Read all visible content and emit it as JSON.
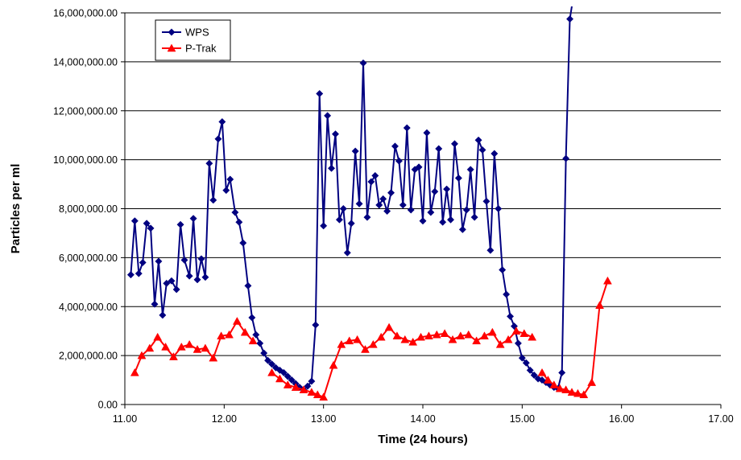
{
  "chart_data": {
    "type": "line",
    "xlabel": "Time (24 hours)",
    "ylabel": "Particles per ml",
    "xlim": [
      11.0,
      17.0
    ],
    "ylim": [
      0,
      16000000
    ],
    "x_ticks": [
      "11.00",
      "12.00",
      "13.00",
      "14.00",
      "15.00",
      "16.00",
      "17.00"
    ],
    "y_ticks": [
      "0.00",
      "2,000,000.00",
      "4,000,000.00",
      "6,000,000.00",
      "8,000,000.00",
      "10,000,000.00",
      "12,000,000.00",
      "14,000,000.00",
      "16,000,000.00"
    ],
    "grid": "horizontal",
    "legend_position": "top-left",
    "series": [
      {
        "name": "WPS",
        "color": "#000080",
        "marker": "diamond",
        "segments": [
          [
            [
              11.06,
              5300000
            ],
            [
              11.1,
              7500000
            ],
            [
              11.14,
              5350000
            ],
            [
              11.18,
              5800000
            ],
            [
              11.22,
              7400000
            ],
            [
              11.26,
              7200000
            ],
            [
              11.3,
              4100000
            ],
            [
              11.34,
              5850000
            ],
            [
              11.38,
              3650000
            ],
            [
              11.42,
              4950000
            ],
            [
              11.47,
              5050000
            ],
            [
              11.52,
              4700000
            ],
            [
              11.56,
              7350000
            ],
            [
              11.6,
              5900000
            ],
            [
              11.65,
              5250000
            ],
            [
              11.69,
              7600000
            ],
            [
              11.73,
              5100000
            ],
            [
              11.77,
              5950000
            ],
            [
              11.81,
              5200000
            ],
            [
              11.85,
              9850000
            ],
            [
              11.89,
              8350000
            ],
            [
              11.94,
              10850000
            ],
            [
              11.98,
              11550000
            ],
            [
              12.02,
              8750000
            ],
            [
              12.06,
              9200000
            ],
            [
              12.11,
              7850000
            ],
            [
              12.15,
              7450000
            ],
            [
              12.19,
              6600000
            ],
            [
              12.24,
              4850000
            ],
            [
              12.28,
              3550000
            ],
            [
              12.32,
              2850000
            ],
            [
              12.36,
              2500000
            ],
            [
              12.4,
              2100000
            ],
            [
              12.44,
              1800000
            ],
            [
              12.48,
              1650000
            ],
            [
              12.52,
              1500000
            ],
            [
              12.56,
              1400000
            ],
            [
              12.6,
              1300000
            ],
            [
              12.64,
              1150000
            ],
            [
              12.68,
              1000000
            ],
            [
              12.72,
              850000
            ],
            [
              12.76,
              700000
            ],
            [
              12.8,
              600000
            ],
            [
              12.84,
              750000
            ],
            [
              12.88,
              950000
            ],
            [
              12.92,
              3250000
            ],
            [
              12.96,
              12700000
            ],
            [
              13.0,
              7300000
            ],
            [
              13.04,
              11800000
            ],
            [
              13.08,
              9650000
            ],
            [
              13.12,
              11050000
            ],
            [
              13.16,
              7550000
            ],
            [
              13.2,
              8000000
            ],
            [
              13.24,
              6200000
            ],
            [
              13.28,
              7400000
            ],
            [
              13.32,
              10350000
            ],
            [
              13.36,
              8200000
            ],
            [
              13.4,
              13950000
            ],
            [
              13.44,
              7650000
            ],
            [
              13.48,
              9100000
            ],
            [
              13.52,
              9350000
            ],
            [
              13.56,
              8150000
            ],
            [
              13.6,
              8400000
            ],
            [
              13.64,
              7900000
            ],
            [
              13.68,
              8650000
            ],
            [
              13.72,
              10550000
            ],
            [
              13.76,
              9950000
            ],
            [
              13.8,
              8150000
            ],
            [
              13.84,
              11300000
            ],
            [
              13.88,
              7950000
            ],
            [
              13.92,
              9600000
            ],
            [
              13.96,
              9700000
            ],
            [
              14.0,
              7500000
            ],
            [
              14.04,
              11100000
            ],
            [
              14.08,
              7850000
            ],
            [
              14.12,
              8700000
            ],
            [
              14.16,
              10450000
            ],
            [
              14.2,
              7450000
            ],
            [
              14.24,
              8800000
            ],
            [
              14.28,
              7550000
            ],
            [
              14.32,
              10650000
            ],
            [
              14.36,
              9250000
            ],
            [
              14.4,
              7150000
            ],
            [
              14.44,
              7950000
            ],
            [
              14.48,
              9600000
            ],
            [
              14.52,
              7650000
            ],
            [
              14.56,
              10800000
            ],
            [
              14.6,
              10400000
            ],
            [
              14.64,
              8300000
            ],
            [
              14.68,
              6300000
            ],
            [
              14.72,
              10250000
            ],
            [
              14.76,
              8000000
            ],
            [
              14.8,
              5500000
            ],
            [
              14.84,
              4500000
            ],
            [
              14.88,
              3600000
            ],
            [
              14.92,
              3200000
            ],
            [
              14.96,
              2500000
            ],
            [
              15.0,
              1900000
            ],
            [
              15.04,
              1700000
            ],
            [
              15.08,
              1400000
            ],
            [
              15.12,
              1200000
            ],
            [
              15.16,
              1050000
            ],
            [
              15.2,
              1000000
            ],
            [
              15.24,
              900000
            ],
            [
              15.28,
              800000
            ],
            [
              15.32,
              700000
            ],
            [
              15.36,
              650000
            ],
            [
              15.4,
              1300000
            ],
            [
              15.44,
              10050000
            ],
            [
              15.48,
              15750000
            ],
            [
              15.52,
              16800000
            ]
          ]
        ]
      },
      {
        "name": "P-Trak",
        "color": "#ff0000",
        "marker": "triangle",
        "segments": [
          [
            [
              11.1,
              1300000
            ],
            [
              11.17,
              2000000
            ],
            [
              11.25,
              2300000
            ],
            [
              11.33,
              2750000
            ],
            [
              11.41,
              2350000
            ],
            [
              11.49,
              1950000
            ],
            [
              11.57,
              2350000
            ],
            [
              11.65,
              2450000
            ],
            [
              11.73,
              2250000
            ],
            [
              11.81,
              2300000
            ],
            [
              11.89,
              1900000
            ],
            [
              11.97,
              2800000
            ],
            [
              12.05,
              2850000
            ],
            [
              12.13,
              3400000
            ],
            [
              12.21,
              2950000
            ],
            [
              12.29,
              2600000
            ]
          ],
          [
            [
              12.48,
              1300000
            ],
            [
              12.56,
              1050000
            ],
            [
              12.64,
              800000
            ],
            [
              12.72,
              700000
            ],
            [
              12.8,
              600000
            ],
            [
              12.88,
              500000
            ],
            [
              12.94,
              400000
            ],
            [
              13.0,
              300000
            ],
            [
              13.1,
              1600000
            ],
            [
              13.18,
              2450000
            ],
            [
              13.26,
              2600000
            ],
            [
              13.34,
              2650000
            ],
            [
              13.42,
              2250000
            ],
            [
              13.5,
              2450000
            ],
            [
              13.58,
              2750000
            ],
            [
              13.66,
              3150000
            ],
            [
              13.74,
              2800000
            ],
            [
              13.82,
              2650000
            ],
            [
              13.9,
              2550000
            ],
            [
              13.98,
              2750000
            ],
            [
              14.06,
              2800000
            ],
            [
              14.14,
              2850000
            ],
            [
              14.22,
              2900000
            ],
            [
              14.3,
              2650000
            ],
            [
              14.38,
              2800000
            ],
            [
              14.46,
              2850000
            ],
            [
              14.54,
              2600000
            ],
            [
              14.62,
              2800000
            ],
            [
              14.7,
              2950000
            ],
            [
              14.78,
              2450000
            ],
            [
              14.86,
              2650000
            ],
            [
              14.94,
              3000000
            ],
            [
              15.02,
              2900000
            ],
            [
              15.1,
              2750000
            ]
          ],
          [
            [
              15.2,
              1300000
            ],
            [
              15.26,
              1000000
            ],
            [
              15.32,
              800000
            ],
            [
              15.38,
              650000
            ],
            [
              15.44,
              600000
            ],
            [
              15.5,
              500000
            ],
            [
              15.56,
              450000
            ],
            [
              15.62,
              400000
            ],
            [
              15.7,
              900000
            ],
            [
              15.78,
              4050000
            ],
            [
              15.86,
              5050000
            ]
          ]
        ]
      }
    ]
  }
}
